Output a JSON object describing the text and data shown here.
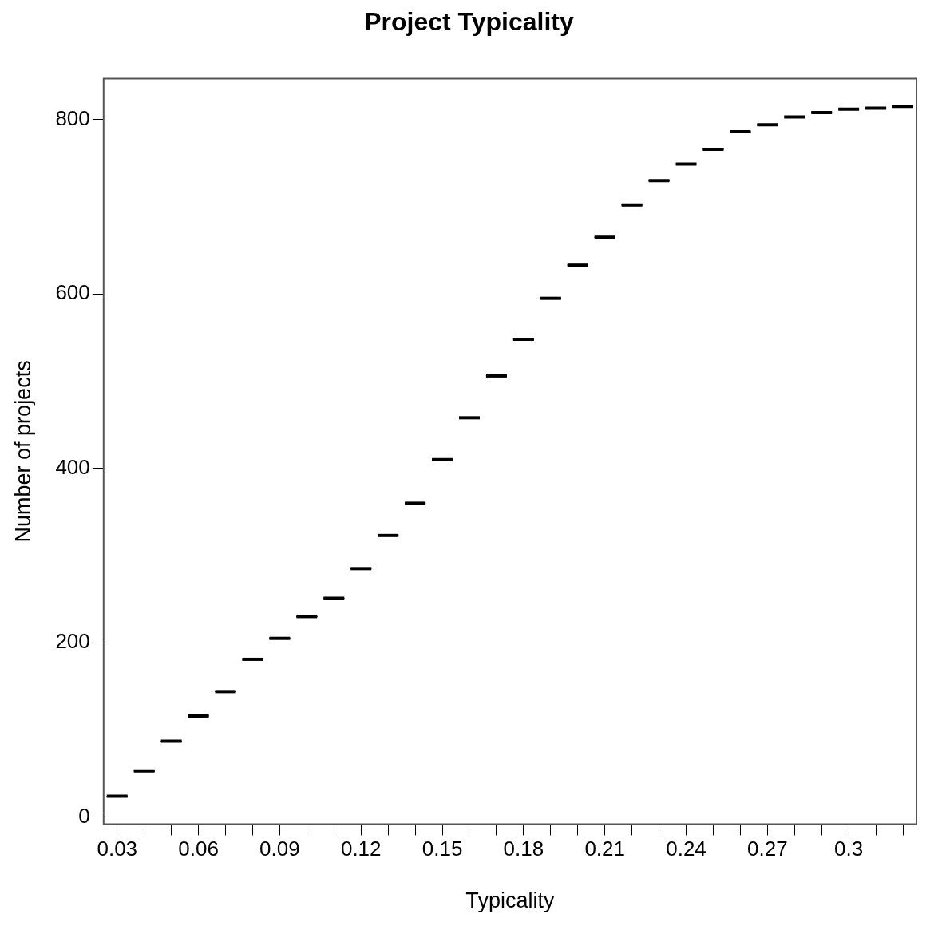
{
  "chart_data": {
    "type": "box",
    "title": "Project Typicality",
    "xlabel": "Typicality",
    "ylabel": "Number of projects",
    "categories": [
      "0.03",
      null,
      null,
      "0.06",
      null,
      null,
      "0.09",
      null,
      null,
      "0.12",
      null,
      null,
      "0.15",
      null,
      null,
      "0.18",
      null,
      null,
      "0.21",
      null,
      null,
      "0.24",
      null,
      null,
      "0.27",
      null,
      null,
      "0.3",
      null,
      null
    ],
    "boxes": [
      {
        "low": 24,
        "q1": 24,
        "median": 24,
        "q3": 24,
        "high": 24
      },
      {
        "low": 53,
        "q1": 53,
        "median": 53,
        "q3": 53,
        "high": 53
      },
      {
        "low": 87,
        "q1": 87,
        "median": 87,
        "q3": 87,
        "high": 87
      },
      {
        "low": 116,
        "q1": 116,
        "median": 116,
        "q3": 116,
        "high": 116
      },
      {
        "low": 144,
        "q1": 144,
        "median": 144,
        "q3": 144,
        "high": 144
      },
      {
        "low": 181,
        "q1": 181,
        "median": 181,
        "q3": 181,
        "high": 181
      },
      {
        "low": 205,
        "q1": 205,
        "median": 205,
        "q3": 205,
        "high": 205
      },
      {
        "low": 230,
        "q1": 230,
        "median": 230,
        "q3": 230,
        "high": 230
      },
      {
        "low": 251,
        "q1": 251,
        "median": 251,
        "q3": 251,
        "high": 251
      },
      {
        "low": 285,
        "q1": 285,
        "median": 285,
        "q3": 285,
        "high": 285
      },
      {
        "low": 323,
        "q1": 323,
        "median": 323,
        "q3": 323,
        "high": 323
      },
      {
        "low": 360,
        "q1": 360,
        "median": 360,
        "q3": 360,
        "high": 360
      },
      {
        "low": 410,
        "q1": 410,
        "median": 410,
        "q3": 410,
        "high": 410
      },
      {
        "low": 458,
        "q1": 458,
        "median": 458,
        "q3": 458,
        "high": 458
      },
      {
        "low": 506,
        "q1": 506,
        "median": 506,
        "q3": 506,
        "high": 506
      },
      {
        "low": 548,
        "q1": 548,
        "median": 548,
        "q3": 548,
        "high": 548
      },
      {
        "low": 595,
        "q1": 595,
        "median": 595,
        "q3": 595,
        "high": 595
      },
      {
        "low": 633,
        "q1": 633,
        "median": 633,
        "q3": 633,
        "high": 633
      },
      {
        "low": 665,
        "q1": 665,
        "median": 665,
        "q3": 665,
        "high": 665
      },
      {
        "low": 702,
        "q1": 702,
        "median": 702,
        "q3": 702,
        "high": 702
      },
      {
        "low": 730,
        "q1": 730,
        "median": 730,
        "q3": 730,
        "high": 730
      },
      {
        "low": 749,
        "q1": 749,
        "median": 749,
        "q3": 749,
        "high": 749
      },
      {
        "low": 766,
        "q1": 766,
        "median": 766,
        "q3": 766,
        "high": 766
      },
      {
        "low": 786,
        "q1": 786,
        "median": 786,
        "q3": 786,
        "high": 786
      },
      {
        "low": 794,
        "q1": 794,
        "median": 794,
        "q3": 794,
        "high": 794
      },
      {
        "low": 803,
        "q1": 803,
        "median": 803,
        "q3": 803,
        "high": 803
      },
      {
        "low": 808,
        "q1": 808,
        "median": 808,
        "q3": 808,
        "high": 808
      },
      {
        "low": 812,
        "q1": 812,
        "median": 812,
        "q3": 812,
        "high": 812
      },
      {
        "low": 813,
        "q1": 813,
        "median": 813,
        "q3": 813,
        "high": 813
      },
      {
        "low": 815,
        "q1": 815,
        "median": 815,
        "q3": 815,
        "high": 815
      }
    ],
    "color": "#000000",
    "ylim": [
      -8,
      847
    ],
    "yticks": [
      0,
      200,
      400,
      600,
      800
    ],
    "grid": false,
    "legend": false
  }
}
